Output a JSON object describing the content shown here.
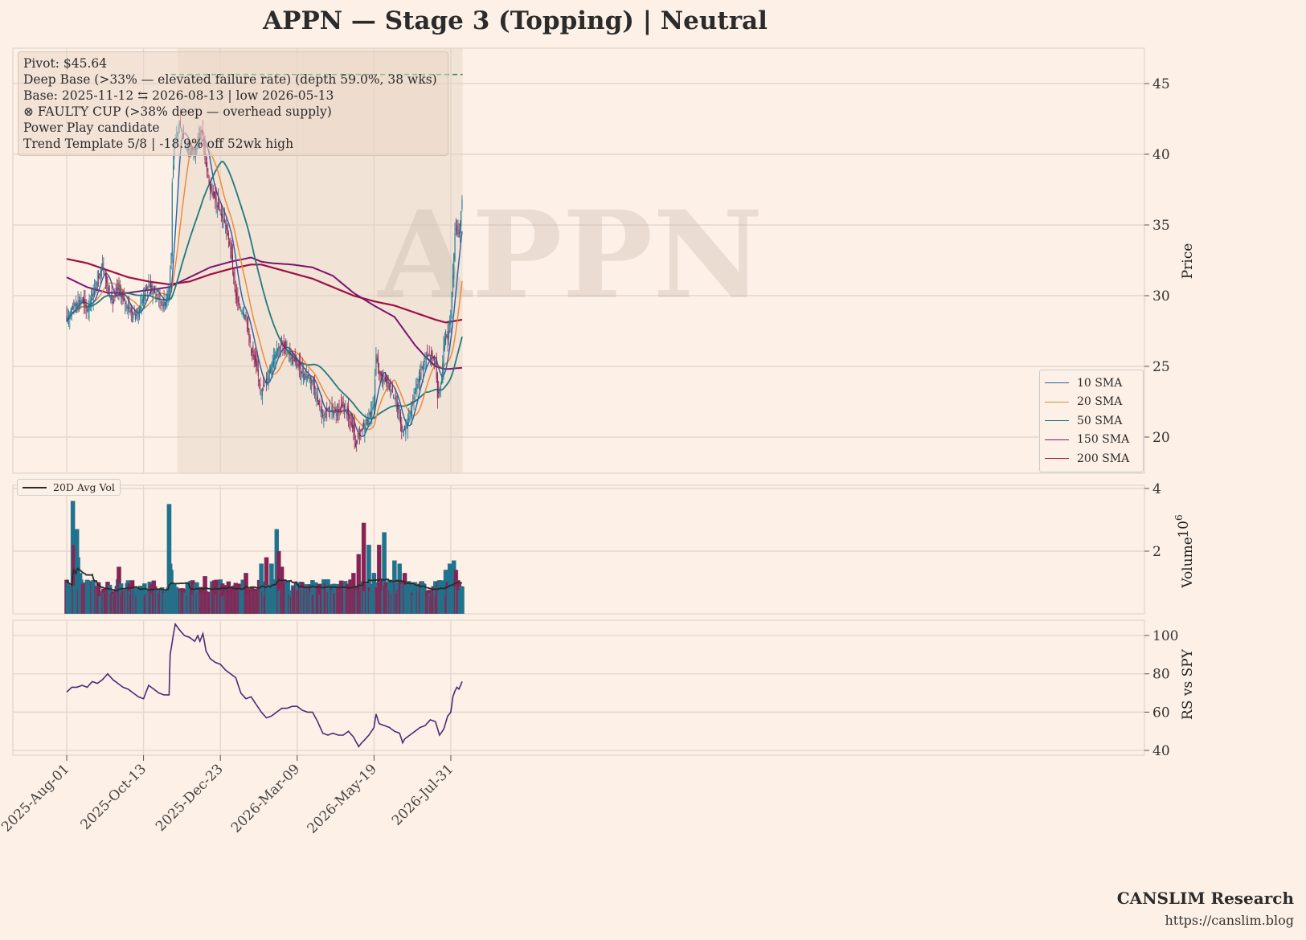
{
  "title": "APPN  —  Stage 3 (Topping)  |  Neutral",
  "info_lines": [
    "Pivot: $45.64",
    "Deep Base (>33% — elevated failure rate)  (depth 59.0%, 38 wks)",
    "Base: 2025-11-12 ⇆ 2026-08-13  |  low 2026-05-13",
    "⊗ FAULTY CUP (>38% deep — overhead supply)",
    "Power Play candidate",
    "Trend Template 5/8  |  -18.9% off 52wk high"
  ],
  "watermark": "APPN",
  "footer": {
    "brand": "CANSLIM Research",
    "url": "https://canslim.blog"
  },
  "colors": {
    "background": "#fdf0e6",
    "up": "#1b7590",
    "down": "#8c2055",
    "sma10": "#2b5fa3",
    "sma20": "#f0852d",
    "sma50": "#1f7a7f",
    "sma150": "#7b1470",
    "sma200": "#9c1043",
    "pivot": "#1a9a45",
    "rs": "#4a2b78",
    "avgvol": "#2b2b2b"
  },
  "chart_data": [
    {
      "type": "candlestick",
      "ylabel": "Price",
      "ylim": [
        17.5,
        47.5
      ],
      "yticks": [
        20,
        25,
        30,
        35,
        40,
        45
      ],
      "x_tick_labels": [
        "2025-Aug-01",
        "2025-Oct-13",
        "2025-Dec-23",
        "2026-Mar-09",
        "2026-May-19",
        "2026-Jul-31"
      ],
      "pivot": 45.64,
      "base_shading": {
        "start": "2025-11-12",
        "end": "2026-08-13"
      },
      "price_anchors": [
        [
          0,
          28.2
        ],
        [
          5,
          29.2
        ],
        [
          10,
          29.5
        ],
        [
          15,
          29.7
        ],
        [
          20,
          29.0
        ],
        [
          25,
          30.0
        ],
        [
          30,
          31.0
        ],
        [
          35,
          32.3
        ],
        [
          40,
          30.5
        ],
        [
          45,
          29.5
        ],
        [
          50,
          30.6
        ],
        [
          55,
          29.7
        ],
        [
          60,
          29.2
        ],
        [
          65,
          28.6
        ],
        [
          70,
          28.8
        ],
        [
          75,
          30.0
        ],
        [
          80,
          30.8
        ],
        [
          85,
          30.3
        ],
        [
          90,
          29.8
        ],
        [
          95,
          29.3
        ],
        [
          100,
          30.6
        ],
        [
          102,
          33.0
        ],
        [
          103,
          38.0
        ],
        [
          105,
          40.5
        ],
        [
          110,
          42.3
        ],
        [
          115,
          40.8
        ],
        [
          120,
          40.2
        ],
        [
          125,
          40.3
        ],
        [
          130,
          41.5
        ],
        [
          133,
          41.5
        ],
        [
          135,
          39.6
        ],
        [
          140,
          37.5
        ],
        [
          145,
          36.8
        ],
        [
          150,
          35.8
        ],
        [
          155,
          35.0
        ],
        [
          160,
          33.3
        ],
        [
          165,
          30.0
        ],
        [
          168,
          29.3
        ],
        [
          175,
          28.5
        ],
        [
          180,
          26.2
        ],
        [
          185,
          25.0
        ],
        [
          190,
          23.3
        ],
        [
          195,
          24.0
        ],
        [
          200,
          25.2
        ],
        [
          205,
          26.2
        ],
        [
          210,
          26.5
        ],
        [
          215,
          26.2
        ],
        [
          220,
          25.5
        ],
        [
          225,
          25.2
        ],
        [
          230,
          24.5
        ],
        [
          235,
          24.3
        ],
        [
          240,
          24.0
        ],
        [
          245,
          22.5
        ],
        [
          250,
          21.5
        ],
        [
          255,
          22.0
        ],
        [
          260,
          21.8
        ],
        [
          265,
          21.7
        ],
        [
          270,
          22.2
        ],
        [
          275,
          21.5
        ],
        [
          280,
          20.4
        ],
        [
          282,
          19.3
        ],
        [
          285,
          20.0
        ],
        [
          290,
          20.8
        ],
        [
          295,
          21.4
        ],
        [
          300,
          22.3
        ],
        [
          302,
          25.8
        ],
        [
          305,
          24.5
        ],
        [
          310,
          24.0
        ],
        [
          315,
          23.7
        ],
        [
          320,
          22.8
        ],
        [
          325,
          21.4
        ],
        [
          327,
          20.4
        ],
        [
          330,
          20.5
        ],
        [
          335,
          21.5
        ],
        [
          340,
          23.2
        ],
        [
          345,
          24.6
        ],
        [
          350,
          25.6
        ],
        [
          355,
          25.8
        ],
        [
          360,
          25.4
        ],
        [
          362,
          22.8
        ],
        [
          366,
          24.0
        ],
        [
          368,
          26.5
        ],
        [
          370,
          27.5
        ],
        [
          372,
          26.8
        ],
        [
          375,
          29.0
        ],
        [
          377,
          31.5
        ],
        [
          379,
          34.4
        ],
        [
          381,
          35.0
        ],
        [
          383,
          34.3
        ],
        [
          386,
          36.8
        ]
      ],
      "rs_anchors": [
        [
          0,
          70.5
        ],
        [
          5,
          73
        ],
        [
          10,
          73
        ],
        [
          15,
          74
        ],
        [
          20,
          73
        ],
        [
          25,
          76
        ],
        [
          30,
          75
        ],
        [
          35,
          77
        ],
        [
          40,
          80
        ],
        [
          45,
          77
        ],
        [
          50,
          75
        ],
        [
          55,
          73
        ],
        [
          60,
          72
        ],
        [
          65,
          70
        ],
        [
          70,
          68
        ],
        [
          75,
          67
        ],
        [
          80,
          74
        ],
        [
          85,
          72
        ],
        [
          90,
          70
        ],
        [
          95,
          69
        ],
        [
          100,
          69
        ],
        [
          101,
          90
        ],
        [
          104,
          100
        ],
        [
          106,
          106
        ],
        [
          110,
          103
        ],
        [
          115,
          100
        ],
        [
          120,
          99
        ],
        [
          125,
          97
        ],
        [
          128,
          100
        ],
        [
          130,
          97
        ],
        [
          133,
          101
        ],
        [
          136,
          92
        ],
        [
          140,
          88
        ],
        [
          145,
          86
        ],
        [
          150,
          85
        ],
        [
          155,
          82
        ],
        [
          160,
          80
        ],
        [
          165,
          78
        ],
        [
          170,
          70
        ],
        [
          175,
          67
        ],
        [
          180,
          68
        ],
        [
          185,
          64
        ],
        [
          190,
          60
        ],
        [
          195,
          57
        ],
        [
          200,
          58
        ],
        [
          205,
          60
        ],
        [
          210,
          62
        ],
        [
          215,
          62
        ],
        [
          220,
          63
        ],
        [
          225,
          63
        ],
        [
          230,
          61
        ],
        [
          235,
          60
        ],
        [
          240,
          60
        ],
        [
          245,
          55
        ],
        [
          250,
          49
        ],
        [
          255,
          48
        ],
        [
          260,
          49
        ],
        [
          265,
          48
        ],
        [
          270,
          48
        ],
        [
          275,
          50
        ],
        [
          280,
          47
        ],
        [
          285,
          42
        ],
        [
          288,
          44
        ],
        [
          290,
          45
        ],
        [
          295,
          48
        ],
        [
          300,
          52
        ],
        [
          302,
          59
        ],
        [
          305,
          54
        ],
        [
          310,
          53
        ],
        [
          315,
          52
        ],
        [
          320,
          50
        ],
        [
          325,
          49
        ],
        [
          328,
          44
        ],
        [
          330,
          46
        ],
        [
          335,
          48
        ],
        [
          340,
          50
        ],
        [
          345,
          52
        ],
        [
          350,
          53
        ],
        [
          355,
          56
        ],
        [
          360,
          55
        ],
        [
          364,
          48
        ],
        [
          368,
          51
        ],
        [
          372,
          58
        ],
        [
          375,
          60
        ],
        [
          377,
          68
        ],
        [
          379,
          71
        ],
        [
          381,
          73
        ],
        [
          383,
          72
        ],
        [
          386,
          76
        ]
      ],
      "sma150_anchors": [
        [
          0,
          31.3
        ],
        [
          20,
          30.6
        ],
        [
          40,
          30.2
        ],
        [
          60,
          30.2
        ],
        [
          80,
          30.4
        ],
        [
          100,
          30.6
        ],
        [
          120,
          31.3
        ],
        [
          140,
          32.0
        ],
        [
          160,
          32.4
        ],
        [
          180,
          32.7
        ],
        [
          190,
          32.4
        ],
        [
          200,
          32.3
        ],
        [
          220,
          32.2
        ],
        [
          240,
          32.0
        ],
        [
          260,
          31.4
        ],
        [
          280,
          30.2
        ],
        [
          300,
          29.3
        ],
        [
          320,
          28.5
        ],
        [
          330,
          27.5
        ],
        [
          340,
          26.5
        ],
        [
          350,
          25.7
        ],
        [
          360,
          25.0
        ],
        [
          370,
          24.8
        ],
        [
          386,
          24.9
        ]
      ],
      "sma200_anchors": [
        [
          0,
          32.6
        ],
        [
          20,
          32.3
        ],
        [
          40,
          31.8
        ],
        [
          60,
          31.3
        ],
        [
          80,
          31.0
        ],
        [
          100,
          30.8
        ],
        [
          120,
          31.0
        ],
        [
          140,
          31.5
        ],
        [
          160,
          31.9
        ],
        [
          180,
          32.2
        ],
        [
          190,
          32.2
        ],
        [
          200,
          32.0
        ],
        [
          220,
          31.6
        ],
        [
          240,
          31.2
        ],
        [
          260,
          30.6
        ],
        [
          280,
          30.0
        ],
        [
          300,
          29.6
        ],
        [
          320,
          29.3
        ],
        [
          340,
          28.8
        ],
        [
          360,
          28.3
        ],
        [
          370,
          28.1
        ],
        [
          386,
          28.3
        ]
      ]
    },
    {
      "type": "bar",
      "ylabel": "Volume",
      "scale_label": "10^6",
      "ylim": [
        0,
        4
      ],
      "yticks": [
        2,
        4
      ],
      "series_name": "20D Avg Vol",
      "volume_spikes": [
        [
          6,
          3.6
        ],
        [
          7,
          2.2
        ],
        [
          10,
          2.7
        ],
        [
          11,
          1.8
        ],
        [
          13,
          1.3
        ],
        [
          50,
          1.1
        ],
        [
          51,
          1.5
        ],
        [
          100,
          3.5
        ],
        [
          101,
          1.6
        ],
        [
          102,
          1.4
        ],
        [
          135,
          1.2
        ],
        [
          160,
          0.5
        ],
        [
          175,
          1.3
        ],
        [
          190,
          1.6
        ],
        [
          195,
          1.8
        ],
        [
          200,
          1.6
        ],
        [
          205,
          2.7
        ],
        [
          207,
          2.0
        ],
        [
          210,
          1.5
        ],
        [
          280,
          1.3
        ],
        [
          285,
          1.9
        ],
        [
          290,
          2.9
        ],
        [
          295,
          2.2
        ],
        [
          300,
          1.3
        ],
        [
          305,
          2.2
        ],
        [
          310,
          2.6
        ],
        [
          320,
          1.7
        ],
        [
          325,
          1.6
        ],
        [
          330,
          1.3
        ],
        [
          370,
          1.4
        ],
        [
          374,
          1.6
        ],
        [
          378,
          1.7
        ],
        [
          380,
          1.4
        ]
      ]
    },
    {
      "type": "line",
      "ylabel": "RS vs SPY",
      "ylim": [
        37.5,
        108
      ],
      "yticks": [
        40,
        60,
        80,
        100
      ]
    }
  ],
  "ma_legend": [
    "10 SMA",
    "20 SMA",
    "50 SMA",
    "150 SMA",
    "200 SMA"
  ]
}
